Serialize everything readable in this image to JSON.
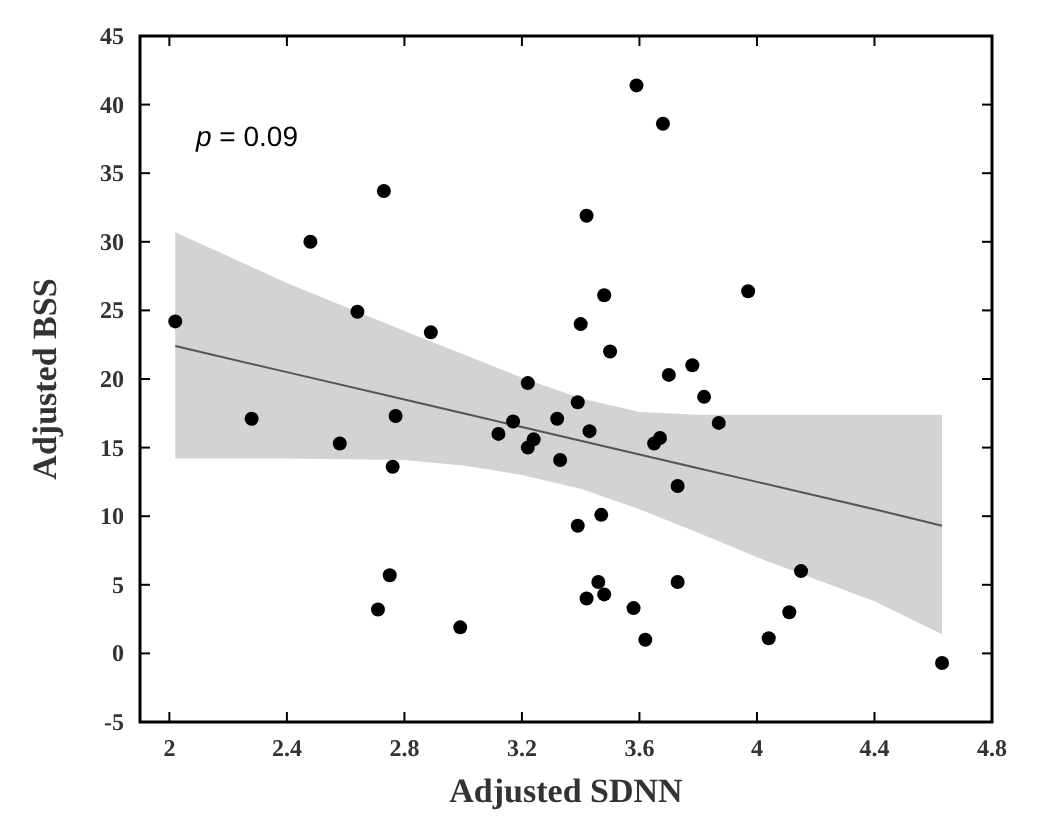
{
  "chart_data": {
    "type": "scatter",
    "xlabel": "Adjusted SDNN",
    "ylabel": "Adjusted BSS",
    "annotations": [
      "p = 0.09"
    ],
    "xlim": [
      1.9,
      4.8
    ],
    "xticks": [
      2,
      2.4,
      2.8,
      3.2,
      3.6,
      4,
      4.4,
      4.8
    ],
    "ylim": [
      -5,
      45
    ],
    "yticks": [
      -5,
      0,
      5,
      10,
      15,
      20,
      25,
      30,
      35,
      40,
      45
    ],
    "grid": false,
    "marker": "circle",
    "series": [
      {
        "type": "line",
        "color": "#555555",
        "marker": "none",
        "line_style": "solid",
        "x": [
          2.02,
          2.4,
          2.8,
          3.0,
          3.2,
          3.4,
          3.6,
          3.8,
          4.0,
          4.4,
          4.63
        ],
        "values": [
          22.4,
          20.5,
          18.5,
          17.5,
          16.5,
          15.5,
          14.5,
          13.5,
          12.5,
          10.5,
          9.3
        ],
        "lower": [
          14.2,
          14.2,
          14.1,
          13.7,
          13.0,
          12.0,
          10.5,
          8.8,
          7.0,
          3.8,
          1.4
        ],
        "upper": [
          30.7,
          27.0,
          23.5,
          21.8,
          20.1,
          18.6,
          17.6,
          17.4,
          17.4,
          17.4,
          17.4
        ]
      },
      {
        "color": "#000000",
        "x": [
          2.02,
          2.28,
          2.48,
          2.58,
          2.64,
          2.73,
          2.71,
          2.75,
          2.76,
          2.77,
          2.89,
          2.99,
          3.12,
          3.17,
          3.22,
          3.22,
          3.24,
          3.32,
          3.33,
          3.39,
          3.4,
          3.42,
          3.43,
          3.39,
          3.47,
          3.46,
          3.42,
          3.48,
          3.48,
          3.5,
          3.59,
          3.58,
          3.62,
          3.68,
          3.65,
          3.67,
          3.7,
          3.73,
          3.73,
          3.78,
          3.82,
          3.87,
          3.97,
          4.04,
          4.11,
          4.15,
          4.63
        ],
        "values": [
          24.2,
          17.1,
          30.0,
          15.3,
          24.9,
          33.7,
          3.2,
          5.7,
          13.6,
          17.3,
          23.4,
          1.9,
          16.0,
          16.9,
          19.7,
          15.0,
          15.6,
          17.1,
          14.1,
          18.3,
          24.0,
          31.9,
          16.2,
          9.3,
          10.1,
          5.2,
          4.0,
          4.3,
          26.1,
          22.0,
          41.4,
          3.3,
          1.0,
          38.6,
          15.3,
          15.7,
          20.3,
          12.2,
          5.2,
          21.0,
          18.7,
          16.8,
          26.4,
          1.1,
          3.0,
          6.0,
          -0.7
        ]
      }
    ]
  }
}
